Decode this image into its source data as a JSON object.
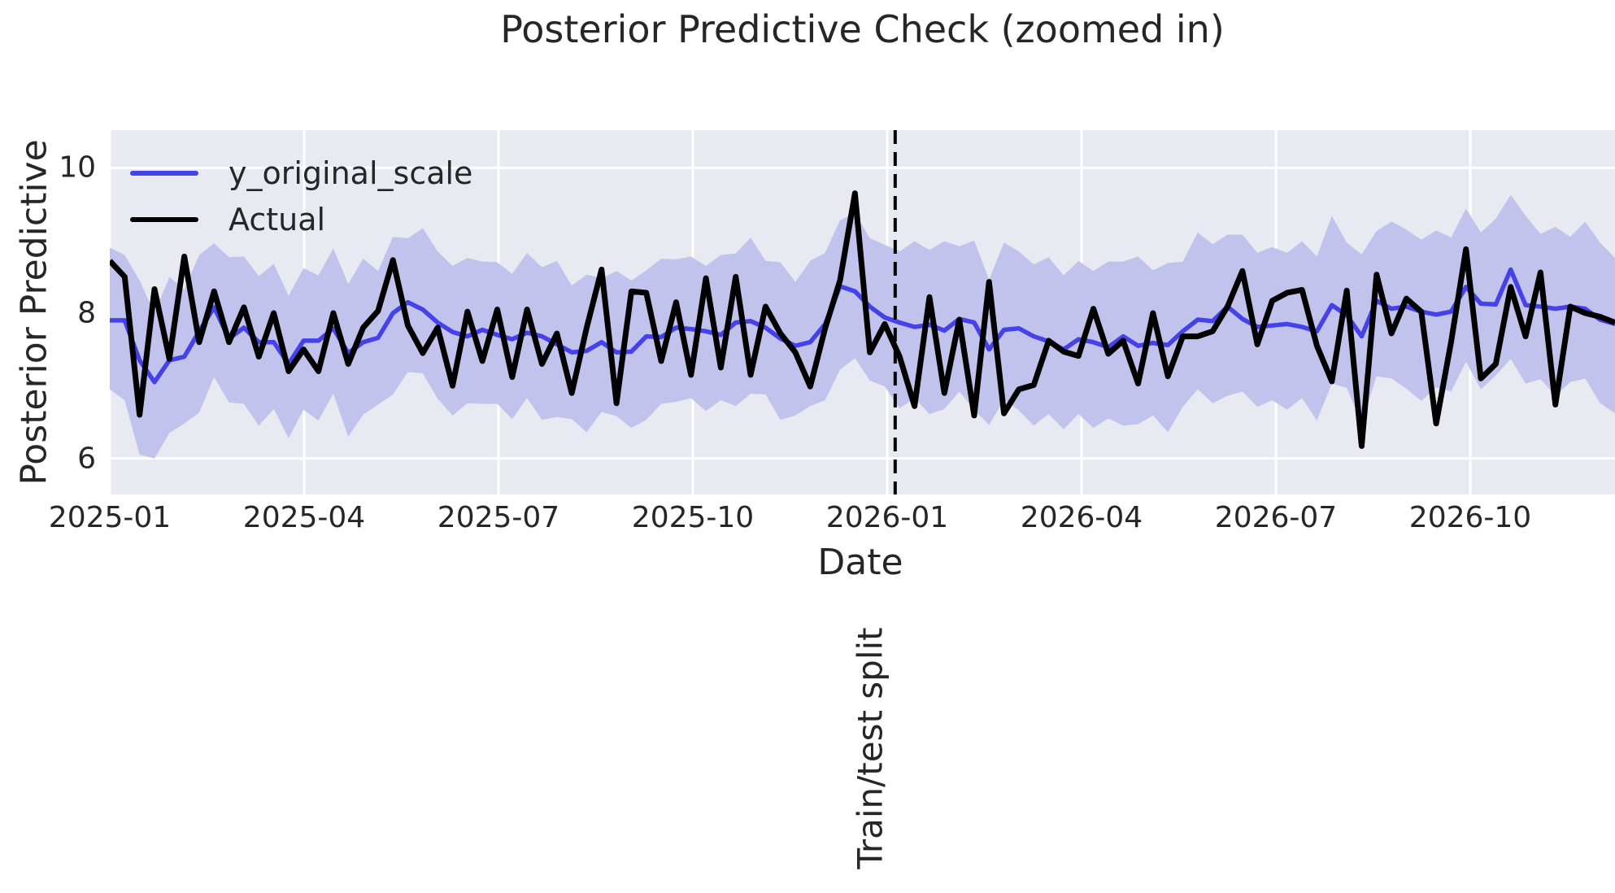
{
  "title": "Posterior Predictive Check (zoomed in)",
  "axes": {
    "x_label": "Date",
    "y_label": "Posterior Predictive",
    "x_ticks": [
      "2025-01",
      "2025-04",
      "2025-07",
      "2025-10",
      "2026-01",
      "2026-04",
      "2026-07",
      "2026-10"
    ],
    "y_ticks": [
      10,
      8,
      6
    ]
  },
  "legend": {
    "items": [
      {
        "label": "y_original_scale",
        "color": "#4442e8"
      },
      {
        "label": "Actual",
        "color": "#000000"
      }
    ]
  },
  "annotations": {
    "split_label": "Train/test split"
  },
  "colors": {
    "panel_bg": "#e9e9f1",
    "grid": "#ffffff",
    "band": "#c1c3ed",
    "mean_line": "#4442e8",
    "actual_line": "#000000",
    "split_line": "#000000",
    "text": "#262626"
  },
  "chart_data": {
    "type": "line",
    "title": "Posterior Predictive Check (zoomed in)",
    "xlabel": "Date",
    "ylabel": "Posterior Predictive",
    "x_unit": "weekly observations from 2025-01 to 2026-12",
    "x_tick_labels": [
      "2025-01",
      "2025-04",
      "2025-07",
      "2025-10",
      "2026-01",
      "2026-04",
      "2026-07",
      "2026-10"
    ],
    "y_ticks": [
      6,
      8,
      10
    ],
    "ylim": [
      5.5,
      10.52
    ],
    "grid": true,
    "legend_position": "upper left",
    "vline": {
      "label": "Train/test split",
      "x_index": 52.7,
      "style": "dashed",
      "color": "#000000"
    },
    "band": {
      "name": "posterior predictive interval",
      "color": "#c1c3ed",
      "upper": [
        8.9,
        8.8,
        8.45,
        8.0,
        8.5,
        8.32,
        8.8,
        8.96,
        8.77,
        8.78,
        8.51,
        8.68,
        8.24,
        8.62,
        8.52,
        8.89,
        8.4,
        8.75,
        8.58,
        9.05,
        9.03,
        9.17,
        8.85,
        8.65,
        8.76,
        8.71,
        8.7,
        8.54,
        8.83,
        8.63,
        8.72,
        8.38,
        8.53,
        8.48,
        8.58,
        8.45,
        8.59,
        8.75,
        8.74,
        8.78,
        8.65,
        8.8,
        8.82,
        9.04,
        8.72,
        8.7,
        8.43,
        8.72,
        8.83,
        9.28,
        9.38,
        9.03,
        8.94,
        8.85,
        8.99,
        8.87,
        8.99,
        8.92,
        9.0,
        8.46,
        8.97,
        8.85,
        8.67,
        8.77,
        8.52,
        8.72,
        8.58,
        8.71,
        8.71,
        8.78,
        8.59,
        8.69,
        8.71,
        9.11,
        8.95,
        9.08,
        9.08,
        8.83,
        8.91,
        8.83,
        8.99,
        8.78,
        9.34,
        8.97,
        8.81,
        9.13,
        9.26,
        9.15,
        9.01,
        9.14,
        9.04,
        9.44,
        9.11,
        9.3,
        9.63,
        9.34,
        9.09,
        9.19,
        9.05,
        9.26,
        8.97,
        8.76
      ],
      "lower": [
        6.95,
        6.8,
        6.05,
        6.0,
        6.35,
        6.48,
        6.63,
        7.12,
        6.77,
        6.75,
        6.45,
        6.68,
        6.28,
        6.67,
        6.52,
        6.89,
        6.3,
        6.6,
        6.74,
        6.88,
        7.19,
        7.17,
        6.82,
        6.59,
        6.76,
        6.75,
        6.75,
        6.54,
        6.83,
        6.53,
        6.57,
        6.54,
        6.36,
        6.64,
        6.58,
        6.42,
        6.53,
        6.75,
        6.78,
        6.83,
        6.65,
        6.8,
        6.72,
        6.89,
        6.88,
        6.53,
        6.59,
        6.72,
        6.8,
        7.22,
        7.38,
        7.07,
        6.99,
        6.69,
        6.83,
        6.61,
        6.68,
        6.92,
        6.67,
        6.46,
        6.81,
        6.66,
        6.45,
        6.61,
        6.4,
        6.61,
        6.42,
        6.55,
        6.45,
        6.47,
        6.59,
        6.36,
        6.71,
        6.95,
        6.76,
        6.86,
        6.92,
        6.71,
        6.8,
        6.67,
        6.83,
        6.52,
        7.03,
        6.97,
        6.48,
        7.13,
        7.1,
        6.96,
        6.79,
        6.98,
        6.92,
        7.33,
        6.95,
        7.14,
        7.37,
        7.03,
        7.09,
        6.86,
        7.05,
        7.1,
        6.76,
        6.62
      ]
    },
    "series": [
      {
        "name": "y_original_scale",
        "color": "#4442e8",
        "values": [
          7.9,
          7.9,
          7.35,
          7.05,
          7.35,
          7.4,
          7.75,
          8.08,
          7.65,
          7.8,
          7.6,
          7.6,
          7.3,
          7.62,
          7.62,
          7.79,
          7.45,
          7.6,
          7.66,
          8.0,
          8.15,
          8.05,
          7.87,
          7.74,
          7.68,
          7.77,
          7.7,
          7.64,
          7.73,
          7.68,
          7.57,
          7.46,
          7.48,
          7.6,
          7.46,
          7.47,
          7.68,
          7.67,
          7.8,
          7.78,
          7.75,
          7.7,
          7.87,
          7.89,
          7.8,
          7.65,
          7.55,
          7.6,
          7.85,
          8.37,
          8.3,
          8.09,
          7.94,
          7.87,
          7.81,
          7.84,
          7.76,
          7.92,
          7.87,
          7.5,
          7.77,
          7.79,
          7.68,
          7.61,
          7.5,
          7.64,
          7.6,
          7.53,
          7.68,
          7.55,
          7.59,
          7.56,
          7.75,
          7.91,
          7.89,
          8.09,
          7.92,
          7.81,
          7.83,
          7.85,
          7.81,
          7.75,
          8.11,
          7.97,
          7.68,
          8.17,
          8.06,
          8.09,
          8.02,
          7.98,
          8.02,
          8.36,
          8.13,
          8.12,
          8.6,
          8.11,
          8.09,
          8.06,
          8.09,
          8.06,
          7.91,
          7.85
        ]
      },
      {
        "name": "Actual",
        "color": "#000000",
        "values": [
          8.72,
          8.5,
          6.6,
          8.33,
          7.37,
          8.78,
          7.6,
          8.3,
          7.6,
          8.08,
          7.4,
          8.0,
          7.2,
          7.5,
          7.2,
          8.0,
          7.3,
          7.8,
          8.03,
          8.73,
          7.83,
          7.45,
          7.8,
          7.0,
          8.02,
          7.34,
          8.05,
          7.12,
          8.05,
          7.3,
          7.72,
          6.9,
          7.8,
          8.6,
          6.76,
          8.3,
          8.28,
          7.34,
          8.15,
          7.15,
          8.48,
          7.25,
          8.5,
          7.15,
          8.09,
          7.72,
          7.46,
          6.99,
          7.79,
          8.45,
          9.65,
          7.46,
          7.85,
          7.4,
          6.72,
          8.22,
          6.9,
          7.91,
          6.59,
          8.43,
          6.62,
          6.95,
          7.01,
          7.62,
          7.47,
          7.41,
          8.06,
          7.44,
          7.62,
          7.03,
          8.0,
          7.13,
          7.68,
          7.68,
          7.75,
          8.09,
          8.58,
          7.57,
          8.17,
          8.28,
          8.32,
          7.55,
          7.06,
          8.31,
          6.17,
          8.53,
          7.72,
          8.2,
          8.02,
          6.48,
          7.6,
          8.88,
          7.1,
          7.3,
          8.36,
          7.68,
          8.56,
          6.74,
          8.09,
          8.0,
          7.95,
          7.87
        ]
      }
    ]
  }
}
